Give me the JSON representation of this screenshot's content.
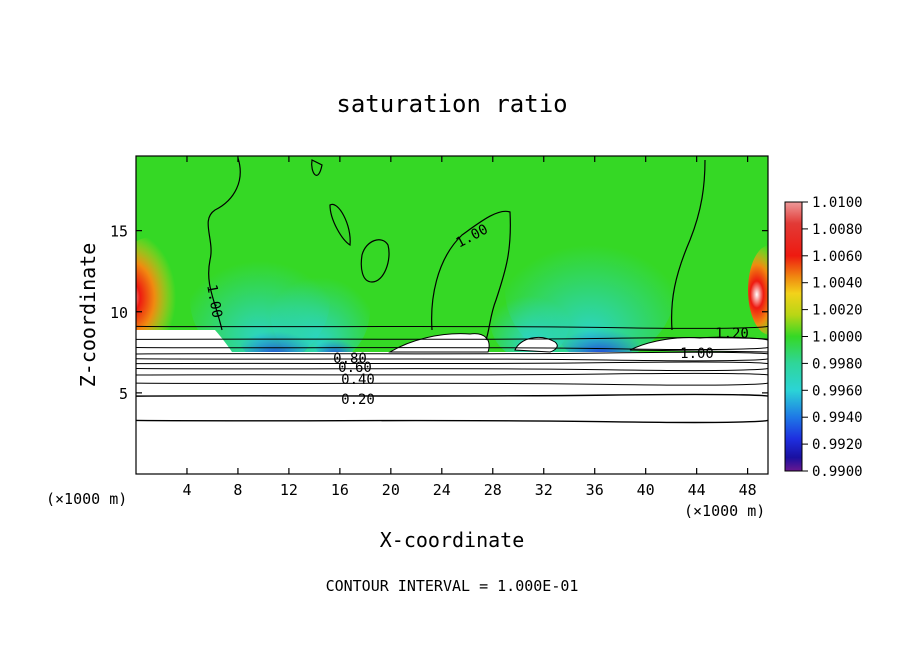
{
  "chart_data": {
    "type": "heatmap",
    "title": "saturation ratio",
    "xlabel": "X-coordinate",
    "ylabel": "Z-coordinate",
    "x_unit_note": "(×1000 m)",
    "x_unit_note_right": "(×1000 m)",
    "footer": "CONTOUR INTERVAL = 1.000E-01",
    "xlim": [
      0,
      49.6
    ],
    "ylim": [
      0,
      19.6
    ],
    "x_ticks": [
      4,
      8,
      12,
      16,
      20,
      24,
      28,
      32,
      36,
      40,
      44,
      48
    ],
    "y_ticks": [
      5,
      10,
      15
    ],
    "colorbar": {
      "min": 0.99,
      "max": 1.01,
      "tick_labels": [
        "1.0100",
        "1.0080",
        "1.0060",
        "1.0040",
        "1.0020",
        "1.0000",
        "0.9980",
        "0.9960",
        "0.9940",
        "0.9920",
        "0.9900"
      ],
      "colors": [
        "#ee9a9a",
        "#e23a36",
        "#ee1a10",
        "#f08a10",
        "#f2d21a",
        "#b8d615",
        "#35d825",
        "#2fd69a",
        "#2bd4d6",
        "#1e78e6",
        "#1e2fe0",
        "#1a10a0",
        "#6a1890"
      ]
    },
    "contour_lines": [
      {
        "value": 1.0,
        "label": "1.00"
      },
      {
        "value": 0.8,
        "label": "0.80"
      },
      {
        "value": 0.6,
        "label": "0.60"
      },
      {
        "value": 0.4,
        "label": "0.40"
      },
      {
        "value": 0.2,
        "label": "0.20"
      },
      {
        "value": 1.2,
        "label": "1.20"
      }
    ],
    "contour_levels_z": [
      9.1,
      8.3,
      7.8,
      7.4,
      7.1,
      6.8,
      6.5,
      6.1,
      5.6,
      4.8,
      3.3
    ]
  }
}
